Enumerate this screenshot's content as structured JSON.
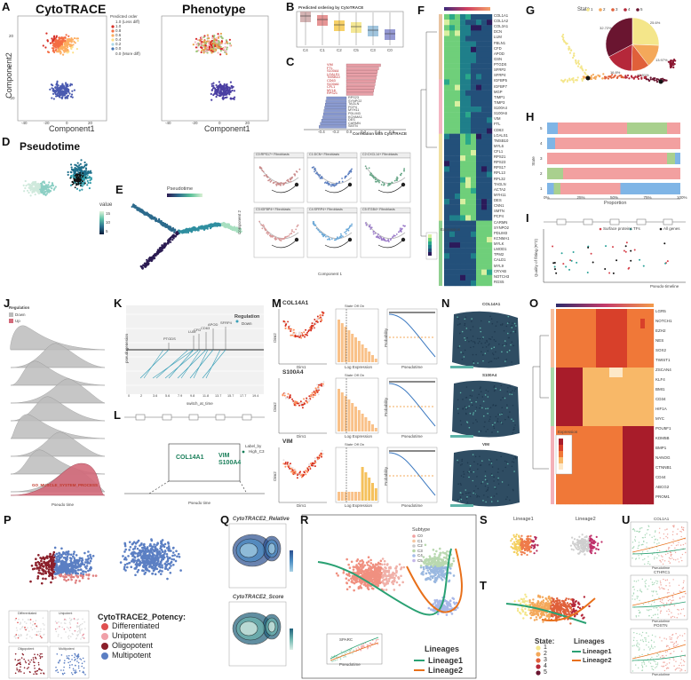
{
  "panels": {
    "A": {
      "label": "A",
      "title_left": "CytoTRACE",
      "title_right": "Phenotype",
      "xlabel": "Component1",
      "ylabel": "Component2",
      "legend_title": "Predicted order",
      "legend_top": "1.0 (Less diff)",
      "legend_bottom": "0.0 (More diff)",
      "legend_values": [
        "1.0",
        "0.8",
        "0.6",
        "0.4",
        "0.2",
        "0.0"
      ],
      "ticks_x": [
        "-40",
        "-20",
        "0",
        "20"
      ],
      "ticks_y": [
        "20",
        "0",
        "-20"
      ]
    },
    "B": {
      "label": "B",
      "title": "Predicted ordering by CytoTRACE",
      "categories": [
        "C4",
        "C1",
        "C2",
        "C5",
        "C3",
        "C0"
      ]
    },
    "C": {
      "label": "C",
      "xlabel": "Correlation with CytoTRACE",
      "genes_pos": [
        "VIM",
        "FTL",
        "S100A4",
        "LGALS1",
        "TMSB10",
        "CD63",
        "S100A6",
        "CFL1",
        "MYL6",
        "RPS21"
      ],
      "genes_neg": [
        "RPS23",
        "SYNPO2",
        "TAGLN",
        "PCP4",
        "MYH11",
        "PDLIM3",
        "KCNMA1",
        "DES",
        "CARMN",
        "SMTN"
      ],
      "ticks": [
        "-0.4",
        "-0.2",
        "0.0",
        "0.2",
        "0.4",
        "0.6"
      ]
    },
    "D": {
      "label": "D",
      "title": "Pseudotime",
      "legend_title": "value",
      "legend_values": [
        "15",
        "10",
        "5"
      ]
    },
    "E": {
      "label": "E",
      "legend_title": "Pseudotime",
      "xlabel": "Component 1",
      "ylabel": "Component 2",
      "subplots": [
        "C0:RPS17+ Fibroblasts",
        "C1:DCN+ Fibroblasts",
        "C2:CXCL14+ Fibroblasts",
        "C3:IGFBP4+ Fibroblasts",
        "C4:SFRP4+ Fibroblasts",
        "C5:ITGB4+ Fibroblasts"
      ]
    },
    "F": {
      "label": "F",
      "legend_title": "Expression",
      "genes": [
        "COL1A1",
        "COL1A2",
        "COL3A1",
        "DCN",
        "LUM",
        "FBLN1",
        "CFD",
        "APOD",
        "GSN",
        "PTGDS",
        "SFRP2",
        "SFRP4",
        "IGFBP5",
        "IGFBP7",
        "MGP",
        "TIMP1",
        "TIMP3",
        "S100A4",
        "S100A6",
        "VIM",
        "FTL",
        "CD63",
        "LGALS1",
        "TMSB10",
        "MYL6",
        "CFL1",
        "RPS21",
        "RPS23",
        "RPS17",
        "RPL13",
        "RPL32",
        "TAGLN",
        "ACTA2",
        "MYH11",
        "DES",
        "CNN1",
        "SMTN",
        "PCP4",
        "CARMN",
        "SYNPO2",
        "PDLIM3",
        "KCNMA1",
        "MYLK",
        "LMOD1",
        "TPM2",
        "CALD1",
        "MYL9",
        "CRYAB",
        "NOTCH3",
        "RGS5"
      ]
    },
    "G": {
      "label": "G",
      "legend_title": "State",
      "states": [
        "1",
        "2",
        "3",
        "4",
        "5"
      ],
      "pie": [
        {
          "state": "1",
          "pct": "25.6%",
          "value": 25.6
        },
        {
          "state": "2",
          "pct": "13.97%",
          "value": 13.97
        },
        {
          "state": "3",
          "pct": "10.91%",
          "value": 10.91
        },
        {
          "state": "4",
          "pct": "16.8%",
          "value": 16.8
        },
        {
          "state": "5",
          "pct": "32.72%",
          "value": 32.72
        }
      ]
    },
    "H": {
      "label": "H",
      "xlabel": "Proportion",
      "ylabel": "State",
      "ticks": [
        "0%",
        "25%",
        "50%",
        "75%",
        "100%"
      ],
      "rows": [
        "5",
        "4",
        "3",
        "2",
        "1"
      ]
    },
    "I": {
      "label": "I",
      "xlabel": "Pseudo-timeline",
      "ylabel": "Quality of fitting (R^2)",
      "legend": [
        "Surface proteins",
        "TFs",
        "All genes"
      ]
    },
    "J": {
      "label": "J",
      "legend_title": "Regulation",
      "legend": [
        "Down",
        "Up"
      ],
      "xlabel": "Pseudo time",
      "highlight": "GO_MUSCLE_SYSTEM_PROCESS"
    },
    "K": {
      "label": "K",
      "legend_title": "Regulation",
      "legend": [
        "Down"
      ],
      "xlabel": "switch_at_time",
      "ylabel": "pseudogenesion",
      "ticks": [
        "0",
        "2",
        "3.6",
        "5.6",
        "7.9",
        "9.8",
        "11.8",
        "13.7",
        "15.7",
        "17.7",
        "19.4"
      ],
      "genes": [
        "PTGDS",
        "LUM",
        "CFD",
        "CD63",
        "APOD",
        "SFRP4"
      ]
    },
    "L": {
      "label": "L",
      "genes": [
        "COL14A1",
        "VIM",
        "S100A4"
      ],
      "legend_title": "Label_by",
      "legend": [
        "High_C3"
      ],
      "xlabel": "Pseudo time"
    },
    "M": {
      "label": "M",
      "genes": [
        "COL14A1",
        "S100A4",
        "VIM"
      ],
      "xlabel_left": "Dim1",
      "ylabel_left": "Dim2",
      "xlabel_mid": "Log Expression",
      "xlabel_right": "Pseudotime",
      "ylabel_right": "Probability",
      "state_label": "State",
      "state_off": "Off",
      "state_on": "On"
    },
    "N": {
      "label": "N",
      "genes": [
        "COL14A1",
        "S100A4",
        "VIM"
      ]
    },
    "O": {
      "label": "O",
      "legend_title": "Expression",
      "genes": [
        "LGR5",
        "NOTCH1",
        "EZH2",
        "NES",
        "SOX2",
        "TWIST1",
        "ZSCAN4",
        "KLF4",
        "BMI1",
        "CD34",
        "HIF1A",
        "MYC",
        "POU5F1",
        "KDM5B",
        "BMP1",
        "NANOG",
        "CTNNB1",
        "CD44",
        "ABCG2",
        "PROM1"
      ]
    },
    "P": {
      "label": "P",
      "legend_title": "CytoTRACE2_Potency:",
      "legend": [
        "Differentiated",
        "Unipotent",
        "Oligopotent",
        "Multipotent"
      ],
      "insets": [
        "Differentiated",
        "Unipotent",
        "Oligopotent",
        "Multipotent"
      ]
    },
    "Q": {
      "label": "Q",
      "title_top": "CytoTRACE2_Relative",
      "title_bottom": "CytoTRACE2_Score"
    },
    "R": {
      "label": "R",
      "legend_title": "Subtype",
      "subtypes": [
        "C0",
        "C1",
        "C2",
        "C3",
        "C4",
        "C5"
      ],
      "lineage_title": "Lineages",
      "lineages": [
        "Lineage1",
        "Lineage2"
      ],
      "inset_title": "SPARC",
      "inset_xlabel": "Pseudotime"
    },
    "S": {
      "label": "S",
      "titles": [
        "Lineage1",
        "Lineage2"
      ]
    },
    "T": {
      "label": "T",
      "state_title": "State:",
      "states": [
        "1",
        "2",
        "3",
        "4",
        "5"
      ],
      "lineage_title": "Lineages",
      "lineages": [
        "Lineage1",
        "Lineage2"
      ]
    },
    "U": {
      "label": "U",
      "titles": [
        "COL1A1",
        "CTHRC1",
        "POSTN"
      ],
      "xlabel": "Pseudotime"
    }
  },
  "colors": {
    "navy": "#2b3a8c",
    "red": "#d73027",
    "orange": "#f18a3c",
    "yellow": "#f5e05a",
    "teal": "#2aa198",
    "green": "#34a27a",
    "purple": "#5b4aa8",
    "pink": "#e89aa8",
    "lightblue": "#9fc5e8",
    "steel": "#5b7fc3",
    "brown": "#7a1f2a"
  }
}
